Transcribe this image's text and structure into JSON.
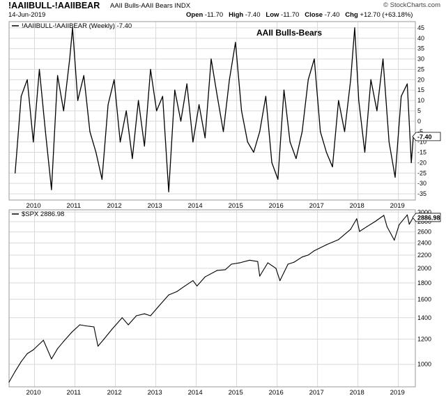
{
  "header": {
    "symbol": "!AAIIBULL-!AAIIBEAR",
    "description": "AAII Bulls-AAII Bears  INDX",
    "brand": "© StockCharts.com",
    "date": "14-Jun-2019",
    "ohlc": {
      "open_label": "Open",
      "open": "-11.70",
      "high_label": "High",
      "high": "-7.40",
      "low_label": "Low",
      "low": "-11.70",
      "close_label": "Close",
      "close": "-7.40",
      "chg_label": "Chg",
      "chg": "+12.70 (+63.18%)"
    }
  },
  "colors": {
    "line": "#000000",
    "grid": "#d9d9d9",
    "frame": "#9a9a9a",
    "tag_bg": "#ffffff"
  },
  "chart_data": [
    {
      "type": "line",
      "legend": "!AAIIBULL-!AAIIBEAR (Weekly) -7.40",
      "annotation": "AAII Bulls-Bears",
      "last_value_tag": "-7.40",
      "ylim": [
        -38,
        48
      ],
      "yticks": [
        -35,
        -30,
        -25,
        -20,
        -15,
        -10,
        -5,
        0,
        5,
        10,
        15,
        20,
        25,
        30,
        35,
        40,
        45
      ],
      "xticks": [
        "2010",
        "2011",
        "2012",
        "2013",
        "2014",
        "2015",
        "2016",
        "2017",
        "2018",
        "2019"
      ],
      "grid": true,
      "series": [
        {
          "x": [
            2009.6,
            2009.75,
            2009.9,
            2010.05,
            2010.2,
            2010.35,
            2010.5,
            2010.65,
            2010.8,
            2010.95,
            2011.02,
            2011.15,
            2011.3,
            2011.45,
            2011.6,
            2011.75,
            2011.9,
            2012.05,
            2012.2,
            2012.35,
            2012.5,
            2012.65,
            2012.8,
            2012.95,
            2013.1,
            2013.25,
            2013.4,
            2013.55,
            2013.7,
            2013.85,
            2014.0,
            2014.15,
            2014.3,
            2014.45,
            2014.6,
            2014.75,
            2014.9,
            2015.05,
            2015.2,
            2015.35,
            2015.5,
            2015.65,
            2015.8,
            2015.95,
            2016.1,
            2016.25,
            2016.4,
            2016.55,
            2016.7,
            2016.85,
            2017.0,
            2017.15,
            2017.3,
            2017.45,
            2017.6,
            2017.75,
            2017.9,
            2018.0,
            2018.1,
            2018.25,
            2018.4,
            2018.55,
            2018.7,
            2018.85,
            2019.0,
            2019.15,
            2019.3,
            2019.4,
            2019.45
          ],
          "values": [
            -25,
            12,
            20,
            -10,
            25,
            -5,
            -33,
            22,
            5,
            30,
            45,
            10,
            22,
            -5,
            -15,
            -28,
            8,
            20,
            -10,
            5,
            -18,
            10,
            -12,
            25,
            5,
            12,
            -34,
            15,
            0,
            18,
            -10,
            8,
            -8,
            30,
            12,
            -5,
            20,
            38,
            5,
            -10,
            -15,
            -5,
            12,
            -20,
            -28,
            15,
            -10,
            -18,
            -5,
            20,
            30,
            -5,
            -15,
            -22,
            10,
            -5,
            20,
            45,
            10,
            -15,
            20,
            5,
            30,
            -10,
            -27,
            12,
            18,
            -20,
            -7.4
          ]
        }
      ]
    },
    {
      "type": "line",
      "legend": "$SPX 2886.98",
      "last_value_tag": "2886.98",
      "scale": "log",
      "ylim": [
        850,
        3050
      ],
      "yticks": [
        1000,
        1200,
        1400,
        1600,
        1800,
        2000,
        2200,
        2400,
        2600,
        2800,
        3000
      ],
      "xticks": [
        "2010",
        "2011",
        "2012",
        "2013",
        "2014",
        "2015",
        "2016",
        "2017",
        "2018",
        "2019"
      ],
      "grid": true,
      "series": [
        {
          "x": [
            2009.45,
            2009.6,
            2009.75,
            2009.9,
            2010.05,
            2010.3,
            2010.5,
            2010.65,
            2010.8,
            2011.0,
            2011.2,
            2011.35,
            2011.55,
            2011.65,
            2011.8,
            2012.0,
            2012.25,
            2012.4,
            2012.6,
            2012.8,
            2012.95,
            2013.15,
            2013.4,
            2013.6,
            2013.8,
            2014.0,
            2014.1,
            2014.3,
            2014.6,
            2014.8,
            2014.95,
            2015.15,
            2015.4,
            2015.6,
            2015.65,
            2015.85,
            2016.05,
            2016.15,
            2016.35,
            2016.5,
            2016.7,
            2016.85,
            2017.0,
            2017.3,
            2017.6,
            2017.9,
            2018.05,
            2018.12,
            2018.3,
            2018.5,
            2018.72,
            2018.8,
            2018.98,
            2019.1,
            2019.3,
            2019.35,
            2019.45
          ],
          "values": [
            880,
            950,
            1020,
            1080,
            1110,
            1190,
            1040,
            1120,
            1180,
            1260,
            1330,
            1320,
            1310,
            1140,
            1200,
            1290,
            1400,
            1330,
            1420,
            1440,
            1420,
            1520,
            1650,
            1690,
            1760,
            1830,
            1760,
            1880,
            1970,
            1980,
            2060,
            2080,
            2120,
            2100,
            1890,
            2080,
            2000,
            1830,
            2060,
            2090,
            2170,
            2200,
            2270,
            2370,
            2460,
            2650,
            2860,
            2610,
            2700,
            2800,
            2930,
            2700,
            2450,
            2740,
            2940,
            2750,
            2887
          ]
        }
      ]
    }
  ]
}
